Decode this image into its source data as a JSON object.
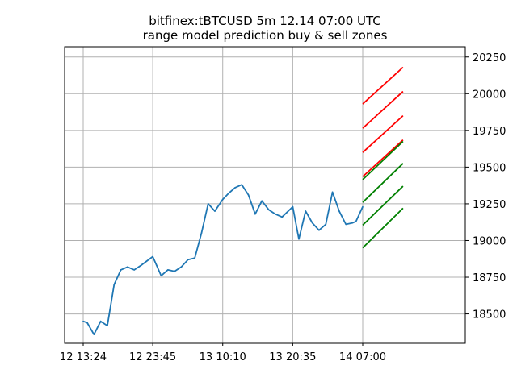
{
  "chart_data": {
    "type": "line",
    "title": "bitfinex:tBTCUSD 5m 12.14 07:00 UTC",
    "subtitle": "range model prediction buy & sell zones",
    "xlabel": "",
    "ylabel": "",
    "x_ticks": [
      "12 13:24",
      "12 23:45",
      "13 10:10",
      "13 20:35",
      "14 07:00"
    ],
    "y_ticks": [
      18500,
      18750,
      19000,
      19250,
      19500,
      19750,
      20000,
      20250
    ],
    "ylim": [
      18300,
      20320
    ],
    "y_axis_side": "right",
    "grid": true,
    "colors": {
      "price": "#1f77b4",
      "sell": "#ff0000",
      "buy": "#008000"
    },
    "price_series": {
      "x": [
        "12 13:24",
        "12 14:00",
        "12 15:00",
        "12 16:00",
        "12 17:00",
        "12 18:00",
        "12 19:00",
        "12 20:00",
        "12 21:00",
        "12 22:00",
        "12 23:45",
        "13 01:00",
        "13 02:00",
        "13 03:00",
        "13 04:00",
        "13 05:00",
        "13 06:00",
        "13 07:00",
        "13 08:00",
        "13 09:00",
        "13 10:10",
        "13 11:00",
        "13 12:00",
        "13 13:00",
        "13 14:00",
        "13 15:00",
        "13 16:00",
        "13 17:00",
        "13 18:00",
        "13 19:00",
        "13 20:35",
        "13 21:30",
        "13 22:30",
        "13 23:30",
        "14 00:30",
        "14 01:30",
        "14 02:30",
        "14 03:30",
        "14 04:30",
        "14 05:30",
        "14 06:00",
        "14 07:00"
      ],
      "values": [
        18450,
        18440,
        18360,
        18450,
        18420,
        18700,
        18800,
        18820,
        18800,
        18830,
        18890,
        18760,
        18800,
        18790,
        18820,
        18870,
        18880,
        19050,
        19250,
        19200,
        19280,
        19320,
        19360,
        19380,
        19310,
        19180,
        19270,
        19210,
        19180,
        19160,
        19230,
        19010,
        19200,
        19120,
        19070,
        19110,
        19330,
        19200,
        19110,
        19120,
        19130,
        19230
      ]
    },
    "sell_zones": [
      {
        "name": "",
        "x": [
          "14 07:00",
          "14 13:00"
        ],
        "values": [
          19930,
          20180
        ]
      },
      {
        "name": "",
        "x": [
          "14 07:00",
          "14 13:00"
        ],
        "values": [
          19765,
          20015
        ]
      },
      {
        "name": "",
        "x": [
          "14 07:00",
          "14 13:00"
        ],
        "values": [
          19600,
          19850
        ]
      },
      {
        "name": "",
        "x": [
          "14 07:00",
          "14 13:00"
        ],
        "values": [
          19435,
          19685
        ]
      }
    ],
    "buy_zones": [
      {
        "name": "",
        "x": [
          "14 07:00",
          "14 13:00"
        ],
        "values": [
          19415,
          19675
        ]
      },
      {
        "name": "",
        "x": [
          "14 07:00",
          "14 13:00"
        ],
        "values": [
          19260,
          19525
        ]
      },
      {
        "name": "",
        "x": [
          "14 07:00",
          "14 13:00"
        ],
        "values": [
          19105,
          19370
        ]
      },
      {
        "name": "",
        "x": [
          "14 07:00",
          "14 13:00"
        ],
        "values": [
          18950,
          19220
        ]
      }
    ]
  }
}
